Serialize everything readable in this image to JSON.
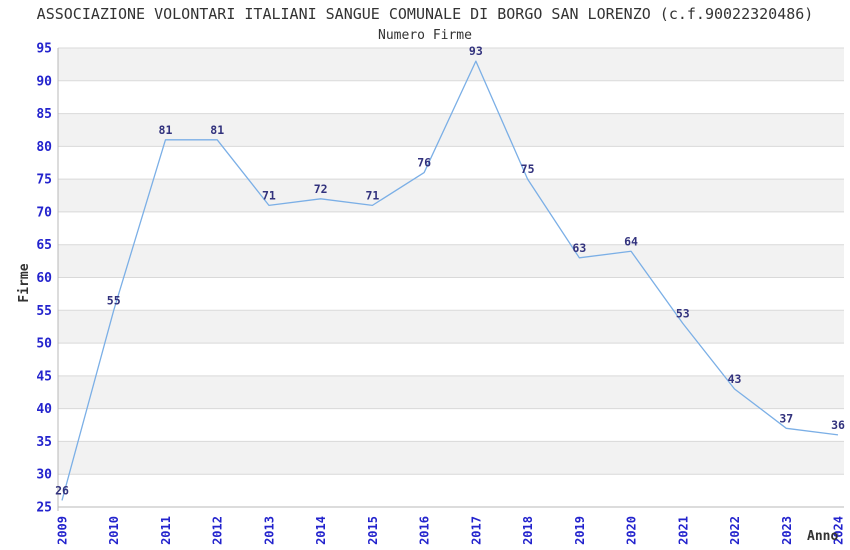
{
  "chart_data": {
    "type": "line",
    "title": "ASSOCIAZIONE VOLONTARI ITALIANI SANGUE COMUNALE DI BORGO SAN LORENZO (c.f.90022320486)",
    "subtitle": "Numero Firme",
    "xlabel": "Anno",
    "ylabel": "Firme",
    "categories": [
      "2009",
      "2010",
      "2011",
      "2012",
      "2013",
      "2014",
      "2015",
      "2016",
      "2017",
      "2018",
      "2019",
      "2020",
      "2021",
      "2022",
      "2023",
      "2024"
    ],
    "values": [
      26,
      55,
      81,
      81,
      71,
      72,
      71,
      76,
      93,
      75,
      63,
      64,
      53,
      43,
      37,
      36
    ],
    "ylim": [
      25,
      95
    ],
    "ytick_step": 5,
    "grid": true,
    "legend_position": "none",
    "point_markers": false,
    "band_pattern": "alternating gray bands every 5 units, gray in ranges 90-95, 80-85, 70-75, 60-65, 50-55, 40-45, 30-35",
    "colors": {
      "line": "#7bafe6",
      "tick_label": "#2323cd",
      "data_label": "#32327d",
      "band": "#f2f2f2",
      "grid_line": "#d9d9d9",
      "axis_line": "#b8b8b8",
      "title_text": "#333333"
    }
  }
}
